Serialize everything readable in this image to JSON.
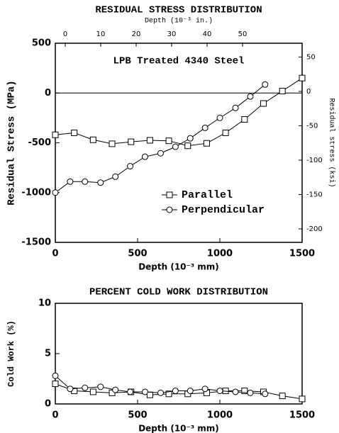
{
  "chart_data": [
    {
      "type": "line",
      "title": "RESIDUAL STRESS DISTRIBUTION",
      "x2label": "Depth (10⁻³ in.)",
      "xlabel": "Depth (10⁻³ mm)",
      "ylabel": "Residual Stress (MPa)",
      "y2label": "Residual stress (ksi)",
      "annotation": "LPB Treated 4340 Steel",
      "xlim": [
        0,
        1500
      ],
      "xticks": [
        0,
        500,
        1000,
        1500
      ],
      "ylim": [
        -1500,
        500
      ],
      "yticks": [
        -1500,
        -1000,
        -500,
        0,
        500
      ],
      "x2lim": [
        -2.8,
        66.8
      ],
      "x2ticks": [
        0,
        10,
        20,
        30,
        40,
        50
      ],
      "y2lim": [
        -219.6,
        70
      ],
      "y2ticks": [
        -200,
        -150,
        -100,
        -50,
        0,
        50
      ],
      "reference_line": 0,
      "legend": "center right",
      "series": [
        {
          "name": "Parallel",
          "marker": "square",
          "color": "#000000",
          "x": [
            0,
            115,
            230,
            345,
            460,
            575,
            690,
            805,
            920,
            1035,
            1150,
            1265,
            1380,
            1500
          ],
          "values": [
            -420,
            -400,
            -470,
            -510,
            -490,
            -475,
            -480,
            -530,
            -505,
            -400,
            -265,
            -105,
            20,
            150
          ]
        },
        {
          "name": "Perpendicular",
          "marker": "circle",
          "color": "#000000",
          "x": [
            0,
            90,
            180,
            275,
            365,
            455,
            545,
            640,
            730,
            820,
            910,
            1000,
            1095,
            1185,
            1275
          ],
          "values": [
            -1000,
            -890,
            -890,
            -900,
            -840,
            -735,
            -640,
            -605,
            -540,
            -455,
            -350,
            -250,
            -150,
            -35,
            85
          ]
        }
      ]
    },
    {
      "type": "line",
      "title": "PERCENT COLD WORK DISTRIBUTION",
      "xlabel": "Depth (10⁻³ mm)",
      "ylabel": "Cold Work (%)",
      "xlim": [
        0,
        1500
      ],
      "xticks": [
        0,
        500,
        1000,
        1500
      ],
      "ylim": [
        0,
        10
      ],
      "yticks": [
        0,
        5,
        10
      ],
      "series": [
        {
          "name": "Parallel",
          "marker": "square",
          "color": "#000000",
          "x": [
            0,
            115,
            230,
            345,
            460,
            575,
            690,
            805,
            920,
            1035,
            1150,
            1265,
            1380,
            1500
          ],
          "values": [
            2.0,
            1.3,
            1.2,
            1.1,
            1.2,
            0.9,
            1.0,
            1.0,
            1.1,
            1.3,
            1.3,
            1.2,
            0.8,
            0.5
          ]
        },
        {
          "name": "Perpendicular",
          "marker": "circle",
          "color": "#000000",
          "x": [
            0,
            90,
            180,
            275,
            365,
            455,
            545,
            640,
            730,
            820,
            910,
            1000,
            1095,
            1185,
            1275
          ],
          "values": [
            2.8,
            1.5,
            1.6,
            1.7,
            1.4,
            1.2,
            1.2,
            1.1,
            1.3,
            1.3,
            1.5,
            1.3,
            1.2,
            1.1,
            1.0
          ]
        }
      ]
    }
  ]
}
